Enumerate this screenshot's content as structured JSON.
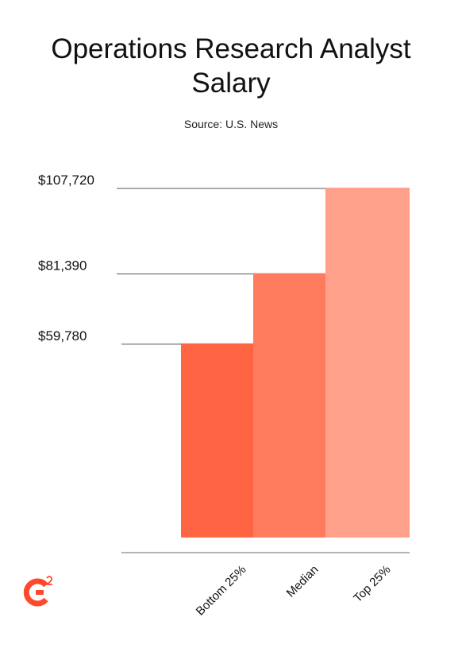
{
  "chart_data": {
    "type": "bar",
    "title": "Operations Research Analyst Salary",
    "subtitle": "Source: U.S. News",
    "categories": [
      "Bottom 25%",
      "Median",
      "Top 25%"
    ],
    "values": [
      59780,
      81390,
      107720
    ],
    "value_labels": [
      "$59,780",
      "$81,390",
      "$107,720"
    ],
    "colors": [
      "#ff6543",
      "#ff7b5e",
      "#ffa08b"
    ],
    "ylim": [
      0,
      107720
    ]
  }
}
